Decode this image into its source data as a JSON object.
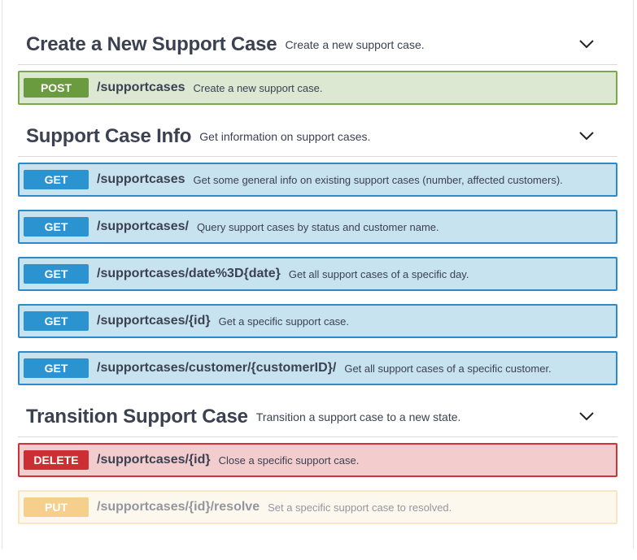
{
  "sections": [
    {
      "title": "Create a New Support Case",
      "description": "Create a new support case.",
      "operations": [
        {
          "method": "POST",
          "path": "/supportcases",
          "summary": "Create a new support case."
        }
      ]
    },
    {
      "title": "Support Case Info",
      "description": "Get information on support cases.",
      "operations": [
        {
          "method": "GET",
          "path": "/supportcases",
          "summary": "Get some general info on existing support cases (number, affected customers)."
        },
        {
          "method": "GET",
          "path": "/supportcases/",
          "summary": "Query support cases by status and customer name."
        },
        {
          "method": "GET",
          "path": "/supportcases/date%3D{date}",
          "summary": "Get all support cases of a specific day."
        },
        {
          "method": "GET",
          "path": "/supportcases/{id}",
          "summary": "Get a specific support case."
        },
        {
          "method": "GET",
          "path": "/supportcases/customer/{customerID}/",
          "summary": "Get all support cases of a specific customer."
        }
      ]
    },
    {
      "title": "Transition Support Case",
      "description": "Transition a support case to a new state.",
      "operations": [
        {
          "method": "DELETE",
          "path": "/supportcases/{id}",
          "summary": "Close a specific support case."
        },
        {
          "method": "PUT",
          "path": "/supportcases/{id}/resolve",
          "summary": "Set a specific support case to resolved."
        }
      ]
    }
  ]
}
